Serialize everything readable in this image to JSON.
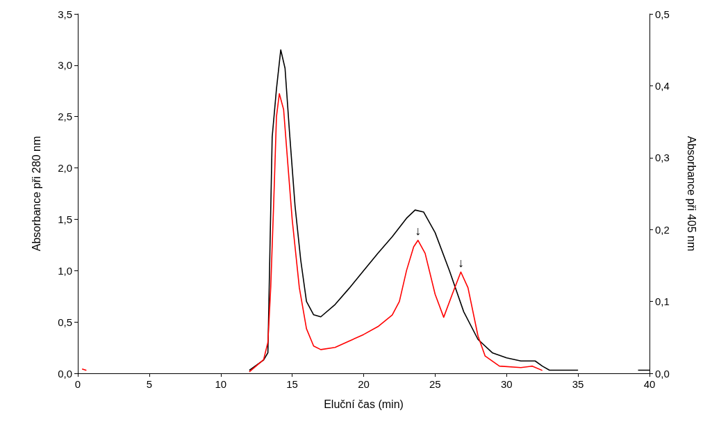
{
  "chart_data": {
    "type": "line",
    "xlabel": "Eluční čas (min)",
    "ylabel": "Absorbance při 280 nm",
    "y2label": "Absorbance při 405 nm",
    "xlim": [
      0,
      40
    ],
    "xticks": [
      0,
      5,
      10,
      15,
      20,
      25,
      30,
      35,
      40
    ],
    "ylim": [
      0,
      3.5
    ],
    "yticks": [
      {
        "value": 0,
        "label": "0,0"
      },
      {
        "value": 0.5,
        "label": "0,5"
      },
      {
        "value": 1,
        "label": "1,0"
      },
      {
        "value": 1.5,
        "label": "1,5"
      },
      {
        "value": 2,
        "label": "2,0"
      },
      {
        "value": 2.5,
        "label": "2,5"
      },
      {
        "value": 3,
        "label": "3,0"
      },
      {
        "value": 3.5,
        "label": "3,5"
      }
    ],
    "y2lim": [
      0,
      0.5
    ],
    "y2ticks": [
      {
        "value": 0,
        "label": "0,0"
      },
      {
        "value": 0.1,
        "label": "0,1"
      },
      {
        "value": 0.2,
        "label": "0,2"
      },
      {
        "value": 0.3,
        "label": "0,3"
      },
      {
        "value": 0.4,
        "label": "0,4"
      },
      {
        "value": 0.5,
        "label": "0,5"
      }
    ],
    "grid": false,
    "marker": "none",
    "line_style": "solid",
    "series": [
      {
        "color": "#000000",
        "x": [
          12,
          13,
          13.3,
          13.6,
          13.9,
          14.2,
          14.5,
          14.8,
          15.2,
          15.6,
          16,
          16.5,
          17,
          18,
          19,
          20,
          21,
          22,
          23,
          23.6,
          24.2,
          25,
          26,
          27,
          28,
          29,
          30,
          31,
          32,
          32.5,
          33,
          35,
          35.1,
          39.2,
          40
        ],
        "values": [
          0.03,
          0.13,
          0.2,
          2.3,
          2.77,
          3.15,
          2.97,
          2.37,
          1.63,
          1.1,
          0.7,
          0.57,
          0.55,
          0.67,
          0.83,
          1.0,
          1.17,
          1.33,
          1.51,
          1.59,
          1.57,
          1.37,
          1.0,
          0.6,
          0.33,
          0.2,
          0.15,
          0.12,
          0.12,
          0.07,
          0.03,
          0.03,
          null,
          0.03,
          0.03
        ]
      },
      {
        "color": "#ff0000",
        "axis": "y2",
        "x": [
          0.3,
          0.6,
          0.7,
          12,
          13,
          13.3,
          13.5,
          13.7,
          13.9,
          14.1,
          14.4,
          14.7,
          15,
          15.5,
          16,
          16.5,
          17,
          18,
          19,
          20,
          21,
          22,
          22.5,
          23,
          23.5,
          23.8,
          24.3,
          25,
          25.6,
          26.2,
          26.8,
          27.3,
          28,
          28.5,
          29.5,
          31,
          31.8,
          32.5
        ],
        "values": [
          0.006,
          0.004,
          null,
          0.002,
          0.019,
          0.043,
          0.12,
          0.233,
          0.357,
          0.389,
          0.367,
          0.29,
          0.214,
          0.119,
          0.062,
          0.038,
          0.033,
          0.036,
          0.045,
          0.054,
          0.065,
          0.081,
          0.1,
          0.143,
          0.176,
          0.185,
          0.167,
          0.11,
          0.078,
          0.11,
          0.141,
          0.119,
          0.052,
          0.024,
          0.01,
          0.008,
          0.01,
          0.004
        ]
      }
    ],
    "annotations": [
      {
        "text": "↓",
        "x": 23.8,
        "y": 1.3
      },
      {
        "text": "↓",
        "x": 26.8,
        "y": 0.99
      }
    ]
  }
}
